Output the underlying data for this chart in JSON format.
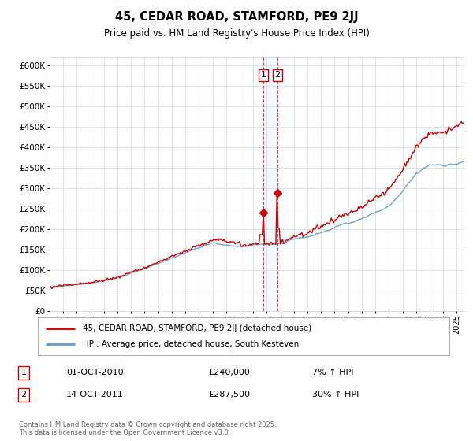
{
  "title": "45, CEDAR ROAD, STAMFORD, PE9 2JJ",
  "subtitle": "Price paid vs. HM Land Registry's House Price Index (HPI)",
  "legend_line1": "45, CEDAR ROAD, STAMFORD, PE9 2JJ (detached house)",
  "legend_line2": "HPI: Average price, detached house, South Kesteven",
  "annotation1_num": "1",
  "annotation1_date": "01-OCT-2010",
  "annotation1_price": "£240,000",
  "annotation1_hpi": "7% ↑ HPI",
  "annotation2_num": "2",
  "annotation2_date": "14-OCT-2011",
  "annotation2_price": "£287,500",
  "annotation2_hpi": "30% ↑ HPI",
  "footer": "Contains HM Land Registry data © Crown copyright and database right 2025.\nThis data is licensed under the Open Government Licence v3.0.",
  "ylim": [
    0,
    620000
  ],
  "yticks": [
    0,
    50000,
    100000,
    150000,
    200000,
    250000,
    300000,
    350000,
    400000,
    450000,
    500000,
    550000,
    600000
  ],
  "line_color_red": "#cc0000",
  "line_color_blue": "#6699cc",
  "vline_color": "#cc0000",
  "span_color": "#ddeeff",
  "vline_x1": 2010.75,
  "vline_x2": 2011.79,
  "marker1_x": 2010.75,
  "marker1_y": 240000,
  "marker2_x": 2011.79,
  "marker2_y": 287500,
  "xmin": 1995,
  "xmax": 2025.5,
  "background_color": "#ffffff",
  "grid_color": "#dddddd"
}
